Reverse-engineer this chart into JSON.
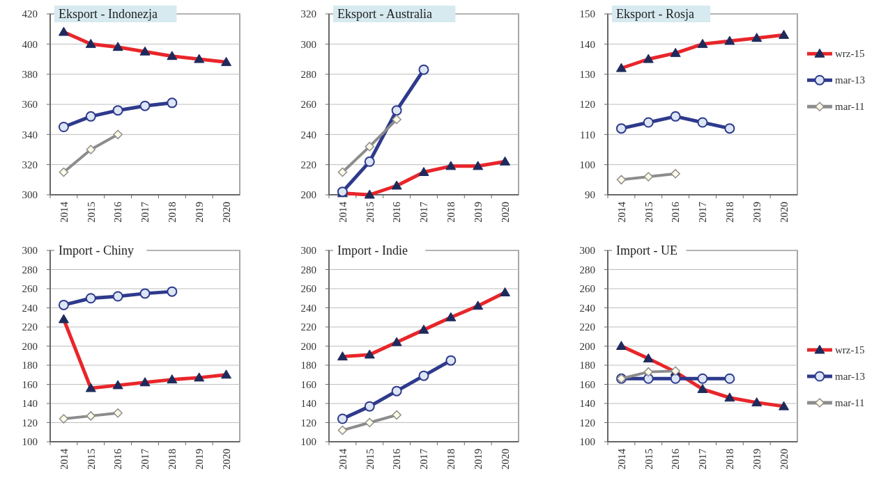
{
  "chart_data": [
    {
      "type": "line",
      "title": "Eksport - Indonezja",
      "categories": [
        "2014",
        "2015",
        "2016",
        "2017",
        "2018",
        "2019",
        "2020"
      ],
      "ylim": [
        300,
        420
      ],
      "yticks": [
        300,
        320,
        340,
        360,
        380,
        400,
        420
      ],
      "grid": "y",
      "legend": false,
      "series": [
        {
          "color": "#e8262a",
          "marker": "triangle",
          "values": [
            408,
            400,
            398,
            395,
            392,
            390,
            388
          ]
        },
        {
          "color": "#2e3a8c",
          "marker": "circle",
          "values": [
            345,
            352,
            356,
            359,
            361,
            null,
            null
          ]
        },
        {
          "color": "#8c8c8c",
          "marker": "diamond",
          "values": [
            315,
            330,
            340,
            null,
            null,
            null,
            null
          ]
        }
      ]
    },
    {
      "type": "line",
      "title": "Eksport - Australia",
      "categories": [
        "2014",
        "2015",
        "2016",
        "2017",
        "2018",
        "2019",
        "2020"
      ],
      "ylim": [
        200,
        320
      ],
      "yticks": [
        200,
        220,
        240,
        260,
        280,
        300,
        320
      ],
      "grid": "y",
      "legend": false,
      "series": [
        {
          "color": "#e8262a",
          "marker": "triangle",
          "values": [
            201,
            200,
            206,
            215,
            219,
            219,
            222
          ]
        },
        {
          "color": "#2e3a8c",
          "marker": "circle",
          "values": [
            202,
            222,
            256,
            283,
            null,
            null,
            null
          ]
        },
        {
          "color": "#8c8c8c",
          "marker": "diamond",
          "values": [
            215,
            232,
            250,
            null,
            null,
            null,
            null
          ]
        }
      ]
    },
    {
      "type": "line",
      "title": "Eksport - Rosja",
      "categories": [
        "2014",
        "2015",
        "2016",
        "2017",
        "2018",
        "2019",
        "2020"
      ],
      "ylim": [
        90,
        150
      ],
      "yticks": [
        90,
        100,
        110,
        120,
        130,
        140,
        150
      ],
      "grid": "y",
      "legend": "right",
      "series": [
        {
          "name": "wrz-15",
          "color": "#e8262a",
          "marker": "triangle",
          "values": [
            132,
            135,
            137,
            140,
            141,
            142,
            143
          ]
        },
        {
          "name": "mar-13",
          "color": "#2e3a8c",
          "marker": "circle",
          "values": [
            112,
            114,
            116,
            114,
            112,
            null,
            null
          ]
        },
        {
          "name": "mar-11",
          "color": "#8c8c8c",
          "marker": "diamond",
          "values": [
            95,
            96,
            97,
            null,
            null,
            null,
            null
          ]
        }
      ]
    },
    {
      "type": "line",
      "title": "Import - Chiny",
      "categories": [
        "2014",
        "2015",
        "2016",
        "2017",
        "2018",
        "2019",
        "2020"
      ],
      "ylim": [
        100,
        300
      ],
      "yticks": [
        100,
        120,
        140,
        160,
        180,
        200,
        220,
        240,
        260,
        280,
        300
      ],
      "grid": "y",
      "legend": false,
      "series": [
        {
          "color": "#e8262a",
          "marker": "triangle",
          "values": [
            228,
            156,
            159,
            162,
            165,
            167,
            170
          ]
        },
        {
          "color": "#2e3a8c",
          "marker": "circle",
          "values": [
            243,
            250,
            252,
            255,
            257,
            null,
            null
          ]
        },
        {
          "color": "#8c8c8c",
          "marker": "diamond",
          "values": [
            124,
            127,
            130,
            null,
            null,
            null,
            null
          ]
        }
      ]
    },
    {
      "type": "line",
      "title": "Import - Indie",
      "categories": [
        "2014",
        "2015",
        "2016",
        "2017",
        "2018",
        "2019",
        "2020"
      ],
      "ylim": [
        100,
        300
      ],
      "yticks": [
        100,
        120,
        140,
        160,
        180,
        200,
        220,
        240,
        260,
        280,
        300
      ],
      "grid": "y",
      "legend": false,
      "series": [
        {
          "color": "#e8262a",
          "marker": "triangle",
          "values": [
            189,
            191,
            204,
            217,
            230,
            242,
            256
          ]
        },
        {
          "color": "#2e3a8c",
          "marker": "circle",
          "values": [
            124,
            137,
            153,
            169,
            185,
            null,
            null
          ]
        },
        {
          "color": "#8c8c8c",
          "marker": "diamond",
          "values": [
            112,
            120,
            128,
            null,
            null,
            null,
            null
          ]
        }
      ]
    },
    {
      "type": "line",
      "title": "Import - UE",
      "categories": [
        "2014",
        "2015",
        "2016",
        "2017",
        "2018",
        "2019",
        "2020"
      ],
      "ylim": [
        100,
        300
      ],
      "yticks": [
        100,
        120,
        140,
        160,
        180,
        200,
        220,
        240,
        260,
        280,
        300
      ],
      "grid": "y",
      "legend": "right",
      "series": [
        {
          "name": "wrz-15",
          "color": "#e8262a",
          "marker": "triangle",
          "values": [
            200,
            187,
            173,
            155,
            146,
            141,
            137
          ]
        },
        {
          "name": "mar-13",
          "color": "#2e3a8c",
          "marker": "circle",
          "values": [
            166,
            166,
            166,
            166,
            166,
            null,
            null
          ]
        },
        {
          "name": "mar-11",
          "color": "#8c8c8c",
          "marker": "diamond",
          "values": [
            166,
            173,
            174,
            null,
            null,
            null,
            null
          ]
        }
      ]
    }
  ]
}
